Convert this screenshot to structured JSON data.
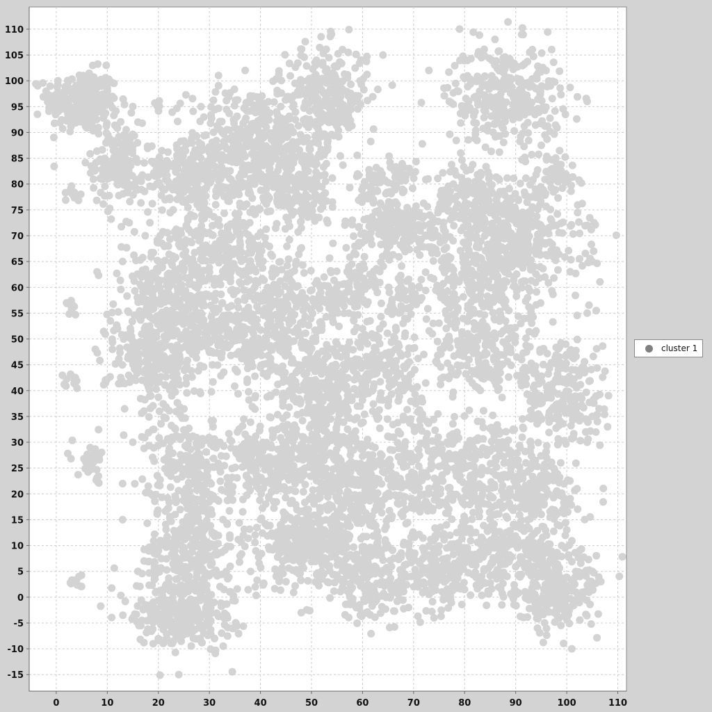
{
  "chart_data": {
    "type": "scatter",
    "title": "",
    "xlabel": "",
    "ylabel": "",
    "xlim": [
      -5.3,
      111.7
    ],
    "ylim": [
      -18.2,
      114.3
    ],
    "x_ticks": [
      0,
      10,
      20,
      30,
      40,
      50,
      60,
      70,
      80,
      90,
      100,
      110
    ],
    "y_ticks": [
      -15,
      -10,
      -5,
      0,
      5,
      10,
      15,
      20,
      25,
      30,
      35,
      40,
      45,
      50,
      55,
      60,
      65,
      70,
      75,
      80,
      85,
      90,
      95,
      100,
      105,
      110
    ],
    "grid": true,
    "legend_position": "right",
    "series": [
      {
        "name": "cluster 1",
        "point_color": "#d3d3d3",
        "legend_color": "#808080",
        "clusters": [
          {
            "cx": 5,
            "cy": 96,
            "sx": 3.5,
            "sy": 3,
            "n": 260
          },
          {
            "cx": 12,
            "cy": 84,
            "sx": 2.5,
            "sy": 4,
            "n": 150
          },
          {
            "cx": 27,
            "cy": 82,
            "sx": 5,
            "sy": 3,
            "n": 230
          },
          {
            "cx": 38,
            "cy": 89,
            "sx": 6,
            "sy": 5,
            "n": 320
          },
          {
            "cx": 46,
            "cy": 80,
            "sx": 5,
            "sy": 4,
            "n": 240
          },
          {
            "cx": 53,
            "cy": 97,
            "sx": 4,
            "sy": 5,
            "n": 280
          },
          {
            "cx": 88,
            "cy": 97,
            "sx": 5.5,
            "sy": 5,
            "n": 320
          },
          {
            "cx": 98,
            "cy": 82,
            "sx": 2,
            "sy": 2,
            "n": 40
          },
          {
            "cx": 65,
            "cy": 80,
            "sx": 3,
            "sy": 3,
            "n": 90
          },
          {
            "cx": 67,
            "cy": 71,
            "sx": 5.5,
            "sy": 3,
            "n": 200
          },
          {
            "cx": 82,
            "cy": 77,
            "sx": 4,
            "sy": 3.5,
            "n": 160
          },
          {
            "cx": 90,
            "cy": 69,
            "sx": 6.5,
            "sy": 6,
            "n": 420
          },
          {
            "cx": 82,
            "cy": 60,
            "sx": 5,
            "sy": 5,
            "n": 200
          },
          {
            "cx": 30,
            "cy": 67,
            "sx": 6.5,
            "sy": 5,
            "n": 320
          },
          {
            "cx": 21,
            "cy": 58,
            "sx": 4,
            "sy": 4,
            "n": 150
          },
          {
            "cx": 19,
            "cy": 46,
            "sx": 4.5,
            "sy": 5.5,
            "n": 240
          },
          {
            "cx": 32,
            "cy": 51,
            "sx": 6.5,
            "sy": 3.5,
            "n": 240
          },
          {
            "cx": 44,
            "cy": 55,
            "sx": 5,
            "sy": 6,
            "n": 260
          },
          {
            "cx": 57,
            "cy": 59,
            "sx": 3.5,
            "sy": 3,
            "n": 110
          },
          {
            "cx": 68,
            "cy": 58,
            "sx": 2.5,
            "sy": 2,
            "n": 50
          },
          {
            "cx": 64,
            "cy": 45,
            "sx": 4.5,
            "sy": 4,
            "n": 160
          },
          {
            "cx": 83,
            "cy": 47,
            "sx": 5,
            "sy": 4,
            "n": 180
          },
          {
            "cx": 99,
            "cy": 40,
            "sx": 4,
            "sy": 6,
            "n": 230
          },
          {
            "cx": 52,
            "cy": 42,
            "sx": 6,
            "sy": 5,
            "n": 260
          },
          {
            "cx": 51,
            "cy": 30,
            "sx": 6,
            "sy": 6,
            "n": 260
          },
          {
            "cx": 60,
            "cy": 20,
            "sx": 8,
            "sy": 6,
            "n": 380
          },
          {
            "cx": 82,
            "cy": 24,
            "sx": 8,
            "sy": 6,
            "n": 380
          },
          {
            "cx": 96,
            "cy": 19,
            "sx": 3.5,
            "sy": 4,
            "n": 140
          },
          {
            "cx": 26,
            "cy": 26,
            "sx": 4,
            "sy": 4.5,
            "n": 220
          },
          {
            "cx": 41,
            "cy": 25,
            "sx": 3.5,
            "sy": 3,
            "n": 140
          },
          {
            "cx": 26,
            "cy": 10,
            "sx": 4,
            "sy": 5,
            "n": 260
          },
          {
            "cx": 25,
            "cy": -2,
            "sx": 5,
            "sy": 4,
            "n": 300
          },
          {
            "cx": 50,
            "cy": 10,
            "sx": 6,
            "sy": 4,
            "n": 300
          },
          {
            "cx": 62,
            "cy": 3,
            "sx": 4,
            "sy": 3.5,
            "n": 180
          },
          {
            "cx": 75,
            "cy": 5,
            "sx": 4,
            "sy": 4,
            "n": 170
          },
          {
            "cx": 87,
            "cy": 8,
            "sx": 5,
            "sy": 4,
            "n": 220
          },
          {
            "cx": 98,
            "cy": 1,
            "sx": 4,
            "sy": 4,
            "n": 230
          },
          {
            "cx": 7,
            "cy": 26,
            "sx": 1.5,
            "sy": 1.8,
            "n": 40
          },
          {
            "cx": 3,
            "cy": 78,
            "sx": 0.8,
            "sy": 0.8,
            "n": 12
          },
          {
            "cx": 3,
            "cy": 56,
            "sx": 0.7,
            "sy": 0.7,
            "n": 10
          },
          {
            "cx": 3,
            "cy": 42,
            "sx": 1.2,
            "sy": 0.8,
            "n": 12
          },
          {
            "cx": 4,
            "cy": 3,
            "sx": 0.8,
            "sy": 0.7,
            "n": 12
          },
          {
            "cx": 38,
            "cy": 30,
            "sx": 1,
            "sy": 0.8,
            "n": 12
          },
          {
            "cx": 34,
            "cy": 21,
            "sx": 0.8,
            "sy": 0.8,
            "n": 10
          },
          {
            "cx": 71,
            "cy": 36,
            "sx": 1,
            "sy": 1.5,
            "n": 15
          },
          {
            "cx": 20,
            "cy": 95,
            "sx": 0.5,
            "sy": 0.5,
            "n": 5
          }
        ],
        "outliers": [
          [
            -2,
            98
          ],
          [
            -1,
            95
          ],
          [
            15,
            95
          ],
          [
            16,
            92
          ],
          [
            37,
            102
          ],
          [
            64,
            105
          ],
          [
            73,
            102
          ],
          [
            77,
            96
          ],
          [
            104,
            96
          ],
          [
            79,
            110
          ],
          [
            8,
            63
          ],
          [
            13,
            65
          ],
          [
            12,
            52
          ],
          [
            11,
            48
          ],
          [
            13,
            22
          ],
          [
            13,
            15
          ],
          [
            15,
            30
          ],
          [
            16,
            5
          ],
          [
            15,
            -4
          ],
          [
            19,
            -9
          ],
          [
            24,
            -15
          ],
          [
            104,
            72
          ],
          [
            105,
            65
          ],
          [
            104,
            55
          ],
          [
            105,
            35
          ],
          [
            106,
            34
          ],
          [
            108,
            33
          ],
          [
            101,
            -10
          ],
          [
            105,
            5
          ],
          [
            100,
            13
          ],
          [
            102,
            21
          ],
          [
            99,
            10
          ],
          [
            58,
            73
          ],
          [
            53,
            73
          ],
          [
            47,
            65
          ],
          [
            68,
            40
          ],
          [
            72,
            47
          ],
          [
            67,
            38
          ],
          [
            45,
            3
          ],
          [
            48,
            -3
          ],
          [
            69,
            -2
          ],
          [
            74,
            -4
          ],
          [
            104,
            30
          ],
          [
            62,
            36
          ],
          [
            59,
            37
          ],
          [
            55,
            49
          ],
          [
            60,
            52
          ],
          [
            91,
            53
          ],
          [
            100,
            47
          ],
          [
            34,
            12
          ],
          [
            31,
            -8
          ],
          [
            36,
            8
          ],
          [
            40,
            15
          ],
          [
            39,
            2
          ]
        ]
      }
    ]
  }
}
